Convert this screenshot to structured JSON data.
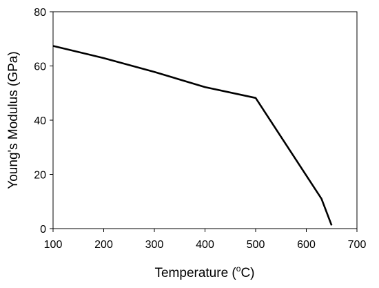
{
  "chart_data": {
    "type": "line",
    "xlabel": "Temperature (",
    "xlabel_sup": "o",
    "xlabel_suffix": "C)",
    "ylabel": "Young's Modulus (GPa)",
    "xlim": [
      100,
      700
    ],
    "ylim": [
      0,
      80
    ],
    "xticks": [
      100,
      200,
      300,
      400,
      500,
      600,
      700
    ],
    "yticks": [
      0,
      20,
      40,
      60,
      80
    ],
    "grid": false,
    "series": [
      {
        "color": "#000000",
        "x": [
          100,
          200,
          300,
          400,
          500,
          630,
          650
        ],
        "y": [
          67.4,
          62.9,
          57.8,
          52.2,
          48.2,
          11.0,
          1.2
        ]
      }
    ]
  }
}
